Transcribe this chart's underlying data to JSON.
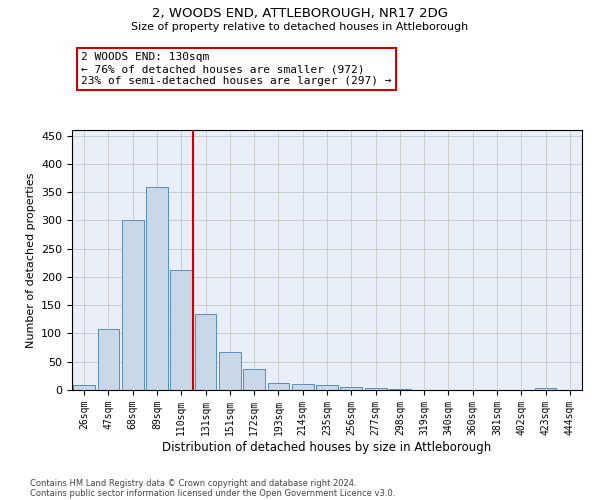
{
  "title1": "2, WOODS END, ATTLEBOROUGH, NR17 2DG",
  "title2": "Size of property relative to detached houses in Attleborough",
  "xlabel": "Distribution of detached houses by size in Attleborough",
  "ylabel": "Number of detached properties",
  "categories": [
    "26sqm",
    "47sqm",
    "68sqm",
    "89sqm",
    "110sqm",
    "131sqm",
    "151sqm",
    "172sqm",
    "193sqm",
    "214sqm",
    "235sqm",
    "256sqm",
    "277sqm",
    "298sqm",
    "319sqm",
    "340sqm",
    "360sqm",
    "381sqm",
    "402sqm",
    "423sqm",
    "444sqm"
  ],
  "values": [
    8,
    108,
    300,
    360,
    212,
    135,
    68,
    38,
    13,
    10,
    8,
    6,
    3,
    2,
    0,
    0,
    0,
    0,
    0,
    3,
    0
  ],
  "bar_color": "#c8d8e8",
  "bar_edge_color": "#5b8db8",
  "vline_color": "#cc0000",
  "annotation_text": "2 WOODS END: 130sqm\n← 76% of detached houses are smaller (972)\n23% of semi-detached houses are larger (297) →",
  "annotation_box_color": "#cc0000",
  "grid_color": "#cccccc",
  "background_color": "#e8eff8",
  "ylim": [
    0,
    460
  ],
  "yticks": [
    0,
    50,
    100,
    150,
    200,
    250,
    300,
    350,
    400,
    450
  ],
  "footer1": "Contains HM Land Registry data © Crown copyright and database right 2024.",
  "footer2": "Contains public sector information licensed under the Open Government Licence v3.0."
}
